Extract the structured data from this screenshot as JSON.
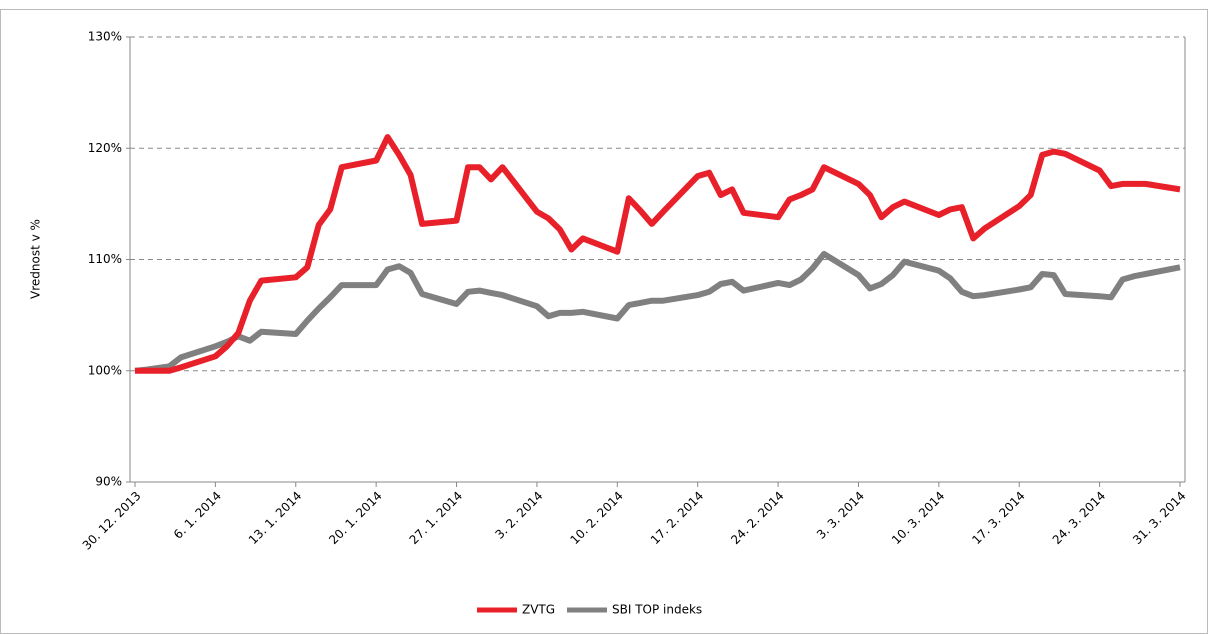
{
  "chart_data": {
    "type": "line",
    "ylabel": "Vrednost v %",
    "x": [
      "2013-12-30",
      "2013-12-31",
      "2014-01-02",
      "2014-01-03",
      "2014-01-06",
      "2014-01-07",
      "2014-01-08",
      "2014-01-09",
      "2014-01-10",
      "2014-01-13",
      "2014-01-14",
      "2014-01-15",
      "2014-01-16",
      "2014-01-17",
      "2014-01-20",
      "2014-01-21",
      "2014-01-22",
      "2014-01-23",
      "2014-01-24",
      "2014-01-27",
      "2014-01-28",
      "2014-01-29",
      "2014-01-30",
      "2014-01-31",
      "2014-02-03",
      "2014-02-04",
      "2014-02-05",
      "2014-02-06",
      "2014-02-07",
      "2014-02-10",
      "2014-02-11",
      "2014-02-12",
      "2014-02-13",
      "2014-02-14",
      "2014-02-17",
      "2014-02-18",
      "2014-02-19",
      "2014-02-20",
      "2014-02-21",
      "2014-02-24",
      "2014-02-25",
      "2014-02-26",
      "2014-02-27",
      "2014-02-28",
      "2014-03-03",
      "2014-03-04",
      "2014-03-05",
      "2014-03-06",
      "2014-03-07",
      "2014-03-10",
      "2014-03-11",
      "2014-03-12",
      "2014-03-13",
      "2014-03-14",
      "2014-03-17",
      "2014-03-18",
      "2014-03-19",
      "2014-03-20",
      "2014-03-21",
      "2014-03-24",
      "2014-03-25",
      "2014-03-26",
      "2014-03-27",
      "2014-03-28",
      "2014-03-31"
    ],
    "series": [
      {
        "name": "ZVTG",
        "color": "#e8202a",
        "values": [
          100,
          100,
          100,
          100.3,
          101.3,
          102.2,
          103.4,
          106.3,
          108.1,
          108.4,
          109.3,
          113.1,
          114.5,
          118.3,
          118.9,
          121,
          119.4,
          117.6,
          113.2,
          113.5,
          118.3,
          118.3,
          117.2,
          118.3,
          114.3,
          113.7,
          112.7,
          110.9,
          111.9,
          110.7,
          115.5,
          114.4,
          113.2,
          114.3,
          117.5,
          117.8,
          115.8,
          116.3,
          114.2,
          113.8,
          115.4,
          115.8,
          116.3,
          118.3,
          116.8,
          115.8,
          113.8,
          114.7,
          115.2,
          114,
          114.5,
          114.7,
          111.9,
          112.8,
          114.8,
          115.8,
          119.4,
          119.7,
          119.5,
          118,
          116.6,
          116.8,
          116.8,
          116.8,
          116.3
        ]
      },
      {
        "name": "SBI TOP indeks",
        "color": "#808080",
        "values": [
          100,
          100.1,
          100.4,
          101.2,
          102.2,
          102.6,
          103.1,
          102.7,
          103.5,
          103.3,
          104.5,
          105.6,
          106.6,
          107.7,
          107.7,
          109.1,
          109.4,
          108.8,
          106.9,
          106,
          107.1,
          107.2,
          107,
          106.8,
          105.8,
          104.9,
          105.2,
          105.2,
          105.3,
          104.7,
          105.9,
          106.1,
          106.3,
          106.3,
          106.8,
          107.1,
          107.8,
          108,
          107.2,
          107.9,
          107.7,
          108.2,
          109.2,
          110.5,
          108.6,
          107.4,
          107.8,
          108.6,
          109.8,
          109,
          108.3,
          107.1,
          106.7,
          106.8,
          107.3,
          107.5,
          108.7,
          108.6,
          106.9,
          106.7,
          106.6,
          108.2,
          108.5,
          108.7,
          109.3
        ]
      }
    ],
    "xlim": [
      "2013-12-30",
      "2014-03-31"
    ],
    "xticks": [
      {
        "value": "2013-12-30",
        "label": "30. 12. 2013"
      },
      {
        "value": "2014-01-06",
        "label": "6. 1. 2014"
      },
      {
        "value": "2014-01-13",
        "label": "13. 1. 2014"
      },
      {
        "value": "2014-01-20",
        "label": "20. 1. 2014"
      },
      {
        "value": "2014-01-27",
        "label": "27. 1. 2014"
      },
      {
        "value": "2014-02-03",
        "label": "3. 2. 2014"
      },
      {
        "value": "2014-02-10",
        "label": "10. 2. 2014"
      },
      {
        "value": "2014-02-17",
        "label": "17. 2. 2014"
      },
      {
        "value": "2014-02-24",
        "label": "24. 2. 2014"
      },
      {
        "value": "2014-03-03",
        "label": "3. 3. 2014"
      },
      {
        "value": "2014-03-10",
        "label": "10. 3. 2014"
      },
      {
        "value": "2014-03-17",
        "label": "17. 3. 2014"
      },
      {
        "value": "2014-03-24",
        "label": "24. 3. 2014"
      },
      {
        "value": "2014-03-31",
        "label": "31. 3. 2014"
      }
    ],
    "ylim": [
      90,
      130
    ],
    "yticks": [
      {
        "value": 90,
        "label": "90%"
      },
      {
        "value": 100,
        "label": "100%"
      },
      {
        "value": 110,
        "label": "110%"
      },
      {
        "value": 120,
        "label": "120%"
      },
      {
        "value": 130,
        "label": "130%"
      }
    ],
    "grid": true,
    "legend": "bottom"
  }
}
